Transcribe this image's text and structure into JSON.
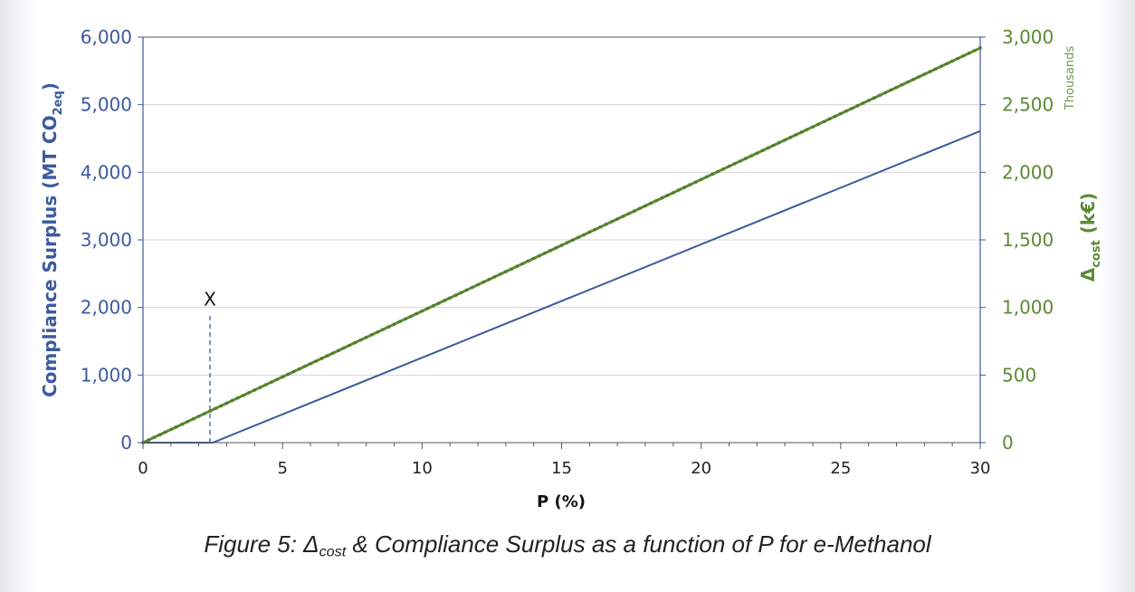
{
  "chart_data": {
    "type": "line",
    "x_axis": {
      "label": "P (%)",
      "range": [
        0,
        30
      ],
      "major_ticks": [
        0,
        5,
        10,
        15,
        20,
        25,
        30
      ],
      "minor_tick_step": 1
    },
    "y_left": {
      "label_main": "Compliance Surplus (MT CO",
      "label_sub": "2eq",
      "label_end": ")",
      "range": [
        0,
        6000
      ],
      "ticks": [
        0,
        1000,
        2000,
        3000,
        4000,
        5000,
        6000
      ],
      "tick_labels": [
        "0",
        "1,000",
        "2,000",
        "3,000",
        "4,000",
        "5,000",
        "6,000"
      ],
      "color": "#3d5a9e"
    },
    "y_right": {
      "label_main": "Δ",
      "label_sub": "cost",
      "label_end": " (k€)",
      "units_label": "Thousands",
      "range": [
        0,
        3000000
      ],
      "ticks": [
        0,
        500000,
        1000000,
        1500000,
        2000000,
        2500000,
        3000000
      ],
      "tick_labels": [
        "0",
        "500",
        "1,000",
        "1,500",
        "2,000",
        "2,500",
        "3,000"
      ],
      "color": "#5b8a33"
    },
    "grid": "horizontal",
    "series": [
      {
        "name": "Compliance Surplus",
        "axis": "left",
        "color": "#3d5a9e",
        "x": [
          0,
          2.5,
          30
        ],
        "y": [
          0,
          0,
          4610
        ]
      },
      {
        "name": "Δcost",
        "axis": "right",
        "color": "#5b8a33",
        "markers": true,
        "x": [
          0,
          30
        ],
        "y": [
          0,
          2920000
        ]
      }
    ],
    "annotations": [
      {
        "text": "X",
        "x": 2.4,
        "line_from_y": 0,
        "line_to_y": 1920,
        "style": "dashed"
      }
    ]
  },
  "caption": {
    "prefix": "Figure 5: Δ",
    "sub": "cost",
    "rest": " & Compliance Surplus as a function of P for e-Methanol"
  }
}
